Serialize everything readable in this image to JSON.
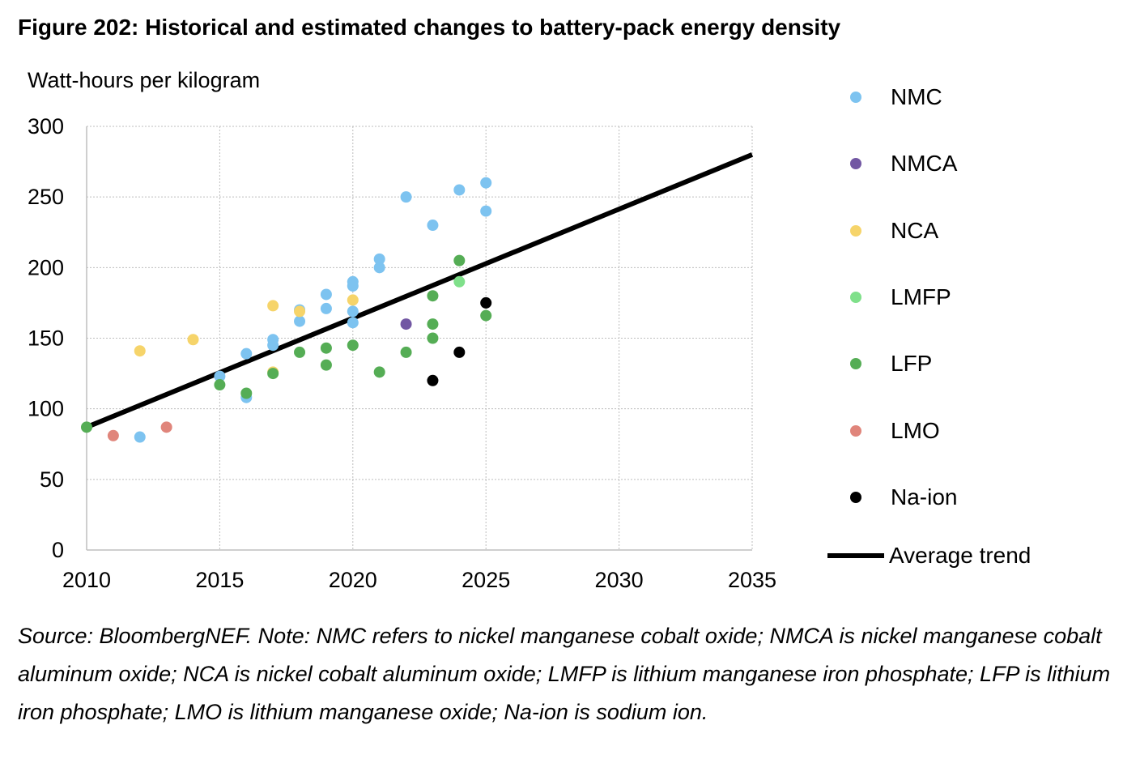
{
  "chart_data": {
    "type": "scatter",
    "title": "Figure 202: Historical and estimated changes to battery-pack energy density",
    "ylabel": "Watt-hours per kilogram",
    "xlabel": "",
    "xlim": [
      2010,
      2035
    ],
    "ylim": [
      0,
      300
    ],
    "xticks": [
      2010,
      2015,
      2020,
      2025,
      2030,
      2035
    ],
    "yticks": [
      0,
      50,
      100,
      150,
      200,
      250,
      300
    ],
    "grid": true,
    "legend_position": "right",
    "series": [
      {
        "name": "NMC",
        "color": "#7dc3f0",
        "points": [
          [
            2012,
            80
          ],
          [
            2015,
            123
          ],
          [
            2016,
            108
          ],
          [
            2016,
            139
          ],
          [
            2017,
            145
          ],
          [
            2017,
            149
          ],
          [
            2018,
            162
          ],
          [
            2018,
            170
          ],
          [
            2019,
            171
          ],
          [
            2019,
            181
          ],
          [
            2020,
            161
          ],
          [
            2020,
            169
          ],
          [
            2020,
            187
          ],
          [
            2020,
            190
          ],
          [
            2021,
            200
          ],
          [
            2021,
            206
          ],
          [
            2022,
            250
          ],
          [
            2023,
            230
          ],
          [
            2024,
            255
          ],
          [
            2025,
            240
          ],
          [
            2025,
            260
          ]
        ]
      },
      {
        "name": "NMCA",
        "color": "#7257a3",
        "points": [
          [
            2022,
            160
          ]
        ]
      },
      {
        "name": "NCA",
        "color": "#f6d46a",
        "points": [
          [
            2012,
            141
          ],
          [
            2014,
            149
          ],
          [
            2017,
            126
          ],
          [
            2017,
            173
          ],
          [
            2018,
            169
          ],
          [
            2020,
            177
          ]
        ]
      },
      {
        "name": "LMFP",
        "color": "#7fe08a",
        "points": [
          [
            2024,
            190
          ]
        ]
      },
      {
        "name": "LFP",
        "color": "#55ad55",
        "points": [
          [
            2010,
            87
          ],
          [
            2015,
            117
          ],
          [
            2016,
            111
          ],
          [
            2017,
            125
          ],
          [
            2018,
            140
          ],
          [
            2019,
            131
          ],
          [
            2019,
            143
          ],
          [
            2020,
            145
          ],
          [
            2021,
            126
          ],
          [
            2022,
            140
          ],
          [
            2023,
            150
          ],
          [
            2023,
            160
          ],
          [
            2023,
            180
          ],
          [
            2024,
            205
          ],
          [
            2025,
            166
          ]
        ]
      },
      {
        "name": "LMO",
        "color": "#e0857b",
        "points": [
          [
            2011,
            81
          ],
          [
            2013,
            87
          ]
        ]
      },
      {
        "name": "Na-ion",
        "color": "#000000",
        "points": [
          [
            2023,
            120
          ],
          [
            2024,
            140
          ],
          [
            2025,
            175
          ]
        ]
      }
    ],
    "trend": {
      "name": "Average trend",
      "color": "#000000",
      "x": [
        2010,
        2035
      ],
      "y": [
        87,
        280
      ]
    }
  },
  "source_note": "Source: BloombergNEF. Note: NMC refers to nickel manganese cobalt oxide; NMCA is nickel manganese cobalt aluminum oxide; NCA is nickel cobalt aluminum oxide; LMFP is lithium manganese iron phosphate; LFP is lithium iron phosphate; LMO is lithium manganese oxide; Na-ion is sodium ion."
}
